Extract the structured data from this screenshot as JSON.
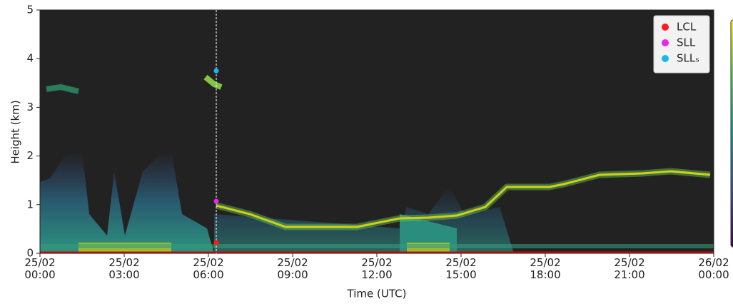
{
  "chart_data": {
    "type": "scatter",
    "xlabel": "Time (UTC)",
    "ylabel": "Height (km)",
    "xlim": [
      0,
      24
    ],
    "ylim": [
      0,
      5
    ],
    "xticks": [
      {
        "value": 0,
        "label": "25/02\n00:00"
      },
      {
        "value": 3,
        "label": "25/02\n03:00"
      },
      {
        "value": 6,
        "label": "25/02\n06:00"
      },
      {
        "value": 9,
        "label": "25/02\n09:00"
      },
      {
        "value": 12,
        "label": "25/02\n12:00"
      },
      {
        "value": 15,
        "label": "25/02\n15:00"
      },
      {
        "value": 18,
        "label": "25/02\n18:00"
      },
      {
        "value": 21,
        "label": "25/02\n21:00"
      },
      {
        "value": 24,
        "label": "26/02\n00:00"
      }
    ],
    "yticks": [
      0,
      1,
      2,
      3,
      4,
      5
    ],
    "vline": 6.28,
    "legend": "upper right",
    "series": [
      {
        "name": "LCL",
        "color": "#ff1a1a",
        "x": [
          6.28
        ],
        "values": [
          0.22
        ]
      },
      {
        "name": "SLL",
        "color": "#ee22ee",
        "x": [
          6.28
        ],
        "values": [
          1.07
        ]
      },
      {
        "name": "SLLₛ",
        "color": "#1ab8f0",
        "x": [
          6.28
        ],
        "values": [
          3.75
        ]
      }
    ]
  }
}
